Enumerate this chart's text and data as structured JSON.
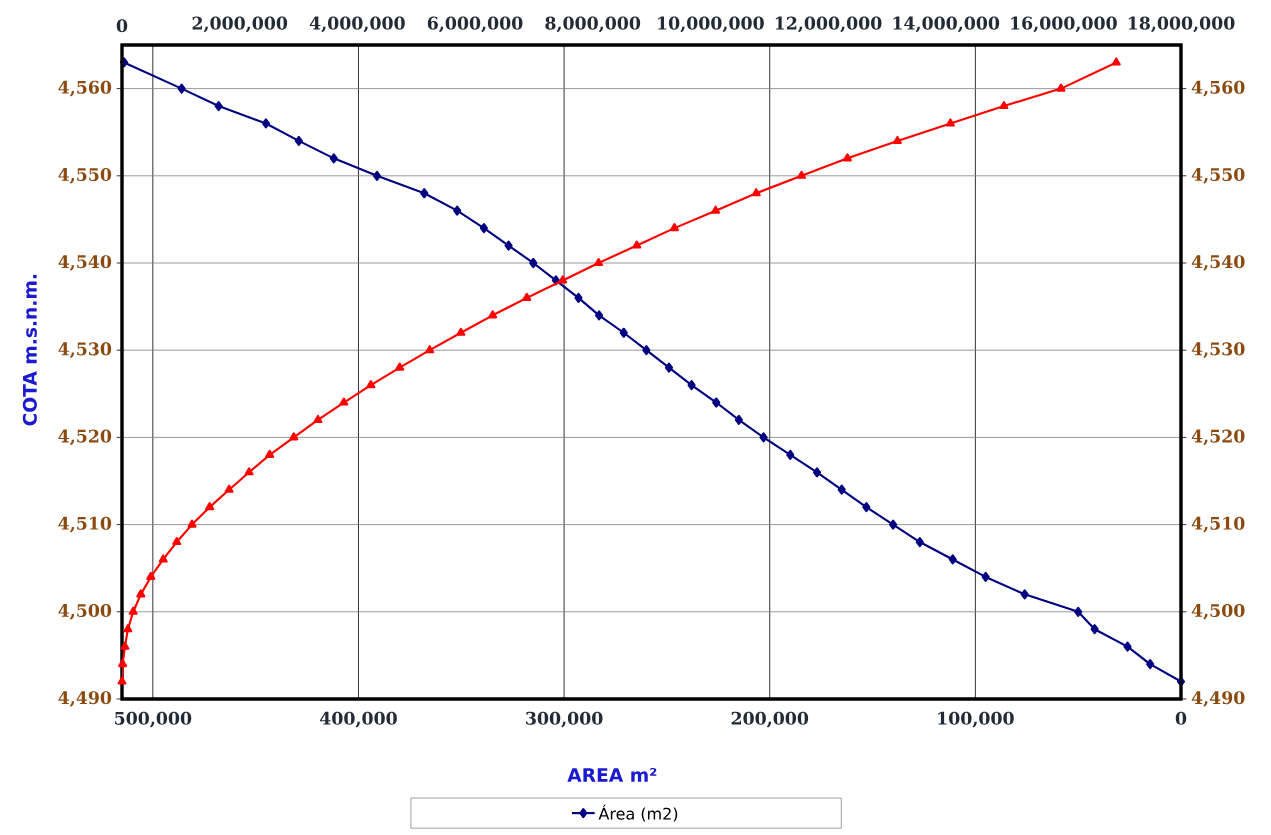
{
  "chart_data": {
    "type": "line",
    "xlabel": "AREA m²",
    "ylabel": "COTA m.s.n.m.",
    "xlim": [
      515000,
      0
    ],
    "xticks": [
      {
        "value": 500000,
        "label": "500,000"
      },
      {
        "value": 400000,
        "label": "400,000"
      },
      {
        "value": 300000,
        "label": "300,000"
      },
      {
        "value": 200000,
        "label": "200,000"
      },
      {
        "value": 100000,
        "label": "100,000"
      },
      0
    ],
    "x2lim": [
      0,
      18000000
    ],
    "x2ticks": [
      0,
      {
        "value": 2000000,
        "label": "2,000,000"
      },
      {
        "value": 4000000,
        "label": "4,000,000"
      },
      {
        "value": 6000000,
        "label": "6,000,000"
      },
      {
        "value": 8000000,
        "label": "8,000,000"
      },
      {
        "value": 10000000,
        "label": "10,000,000"
      },
      {
        "value": 12000000,
        "label": "12,000,000"
      },
      {
        "value": 14000000,
        "label": "14,000,000"
      },
      {
        "value": 16000000,
        "label": "16,000,000"
      },
      {
        "value": 18000000,
        "label": "18,000,000"
      }
    ],
    "ylim": [
      4490,
      4565
    ],
    "yticks": [
      {
        "value": 4490,
        "label": "4,490"
      },
      {
        "value": 4500,
        "label": "4,500"
      },
      {
        "value": 4510,
        "label": "4,510"
      },
      {
        "value": 4520,
        "label": "4,520"
      },
      {
        "value": 4530,
        "label": "4,530"
      },
      {
        "value": 4540,
        "label": "4,540"
      },
      {
        "value": 4550,
        "label": "4,550"
      },
      {
        "value": 4560,
        "label": "4,560"
      }
    ],
    "y2lim": [
      4490,
      4565
    ],
    "y2ticks": [
      {
        "value": 4490,
        "label": "4,490"
      },
      {
        "value": 4500,
        "label": "4,500"
      },
      {
        "value": 4510,
        "label": "4,510"
      },
      {
        "value": 4520,
        "label": "4,520"
      },
      {
        "value": 4530,
        "label": "4,530"
      },
      {
        "value": 4540,
        "label": "4,540"
      },
      {
        "value": 4550,
        "label": "4,550"
      },
      {
        "value": 4560,
        "label": "4,560"
      }
    ],
    "grid": true,
    "legend": "bottom",
    "line_style": "solid",
    "series": [
      {
        "name": "Área (m2)",
        "color": "#000080",
        "marker": "diamond",
        "x": [
          514000,
          486000,
          468000,
          445000,
          429000,
          412000,
          391000,
          368000,
          352000,
          339000,
          327000,
          315000,
          304000,
          293000,
          283000,
          271000,
          260000,
          249000,
          238000,
          226000,
          215000,
          203000,
          190000,
          177000,
          165000,
          153000,
          140000,
          127000,
          111000,
          95000,
          76000,
          50000,
          42000,
          26000,
          15000,
          0
        ],
        "values": [
          4563,
          4560,
          4558,
          4556,
          4554,
          4552,
          4550,
          4548,
          4546,
          4544,
          4542,
          4540,
          4538,
          4536,
          4534,
          4532,
          4530,
          4528,
          4526,
          4524,
          4522,
          4520,
          4518,
          4516,
          4514,
          4512,
          4510,
          4508,
          4506,
          4504,
          4502,
          4500,
          4498,
          4496,
          4494,
          4492
        ]
      },
      {
        "color": "#ff0000",
        "marker": "triangle",
        "axis": "x2",
        "x": [
          0,
          10000,
          50000,
          100000,
          190000,
          320000,
          490000,
          700000,
          930000,
          1190000,
          1490000,
          1820000,
          2160000,
          2510000,
          2920000,
          3330000,
          3770000,
          4230000,
          4720000,
          5230000,
          5760000,
          6300000,
          6880000,
          7490000,
          8100000,
          8750000,
          9390000,
          10090000,
          10780000,
          11550000,
          12330000,
          13180000,
          14080000,
          14990000,
          15960000,
          16900000
        ],
        "values": [
          4492,
          4494,
          4496,
          4498,
          4500,
          4502,
          4504,
          4506,
          4508,
          4510,
          4512,
          4514,
          4516,
          4518,
          4520,
          4522,
          4524,
          4526,
          4528,
          4530,
          4532,
          4534,
          4536,
          4538,
          4540,
          4542,
          4544,
          4546,
          4548,
          4550,
          4552,
          4554,
          4556,
          4558,
          4560,
          4563
        ]
      }
    ]
  }
}
